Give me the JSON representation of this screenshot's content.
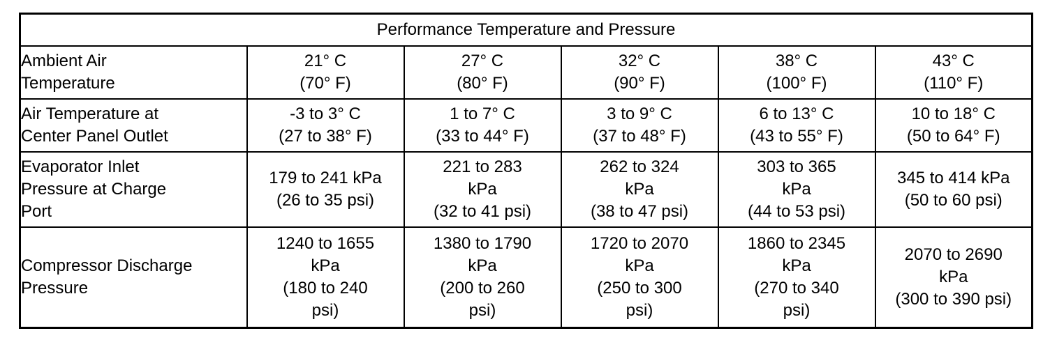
{
  "table": {
    "title": "Performance Temperature and Pressure",
    "rows": [
      {
        "label": [
          "Ambient Air",
          "Temperature"
        ],
        "cells": [
          [
            "21° C",
            "(70° F)"
          ],
          [
            "27° C",
            "(80° F)"
          ],
          [
            "32° C",
            "(90° F)"
          ],
          [
            "38° C",
            "(100° F)"
          ],
          [
            "43° C",
            "(110° F)"
          ]
        ]
      },
      {
        "label": [
          "Air Temperature at",
          "Center Panel Outlet"
        ],
        "cells": [
          [
            "-3 to 3° C",
            "(27 to 38° F)"
          ],
          [
            "1 to 7° C",
            "(33 to 44° F)"
          ],
          [
            "3 to 9° C",
            "(37 to 48° F)"
          ],
          [
            "6 to 13° C",
            "(43 to 55° F)"
          ],
          [
            "10 to 18° C",
            "(50 to 64° F)"
          ]
        ]
      },
      {
        "label": [
          "Evaporator Inlet",
          "Pressure at Charge",
          "Port"
        ],
        "cells": [
          [
            "179 to 241 kPa",
            "(26 to 35 psi)"
          ],
          [
            "221 to 283",
            "kPa",
            "(32 to 41 psi)"
          ],
          [
            "262 to 324",
            "kPa",
            "(38 to 47 psi)"
          ],
          [
            "303 to 365",
            "kPa",
            "(44 to 53 psi)"
          ],
          [
            "345 to 414 kPa",
            "(50 to 60 psi)"
          ]
        ]
      },
      {
        "label": [
          "Compressor Discharge",
          "Pressure"
        ],
        "cells": [
          [
            "1240 to 1655",
            "kPa",
            "(180 to 240",
            "psi)"
          ],
          [
            "1380 to 1790",
            "kPa",
            "(200 to 260",
            "psi)"
          ],
          [
            "1720 to 2070",
            "kPa",
            "(250 to 300",
            "psi)"
          ],
          [
            "1860 to 2345",
            "kPa",
            "(270 to 340",
            "psi)"
          ],
          [
            "2070 to 2690",
            "kPa",
            "(300 to 390 psi)"
          ]
        ]
      }
    ]
  }
}
